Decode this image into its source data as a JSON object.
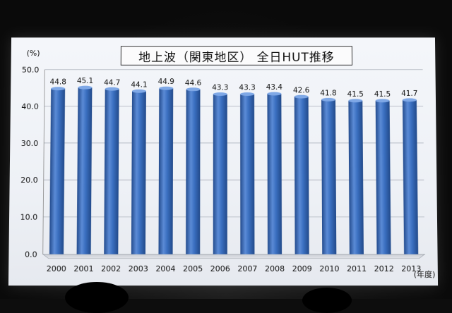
{
  "chart_data": {
    "type": "bar",
    "title": "地上波（関東地区） 全日HUT推移",
    "ylabel": "(%)",
    "xlabel": "(年度)",
    "ylim": [
      0,
      50
    ],
    "yticks": [
      "0.0",
      "10.0",
      "20.0",
      "30.0",
      "40.0",
      "50.0"
    ],
    "grid": true,
    "categories": [
      "2000",
      "2001",
      "2002",
      "2003",
      "2004",
      "2005",
      "2006",
      "2007",
      "2008",
      "2009",
      "2010",
      "2011",
      "2012",
      "2013"
    ],
    "values": [
      44.8,
      45.1,
      44.7,
      44.1,
      44.9,
      44.6,
      43.3,
      43.3,
      43.4,
      42.6,
      41.8,
      41.5,
      41.5,
      41.7
    ],
    "value_labels": [
      "44.8",
      "45.1",
      "44.7",
      "44.1",
      "44.9",
      "44.6",
      "43.3",
      "43.3",
      "43.4",
      "42.6",
      "41.8",
      "41.5",
      "41.5",
      "41.7"
    ],
    "bar_color": "#3a6fc0",
    "bar_highlight": "#7fa8e6",
    "bar_shade": "#244c8e"
  }
}
